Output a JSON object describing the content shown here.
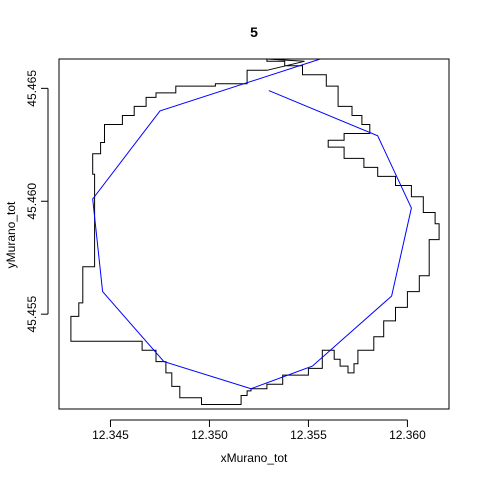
{
  "chart_data": {
    "type": "line",
    "title": "5",
    "xlabel": "xMurano_tot",
    "ylabel": "yMurano_tot",
    "xlim": [
      12.3424,
      12.3621
    ],
    "ylim": [
      45.4508,
      45.4663
    ],
    "x_ticks": [
      12.345,
      12.35,
      12.355,
      12.36
    ],
    "x_tick_labels": [
      "12.345",
      "12.350",
      "12.355",
      "12.360"
    ],
    "y_ticks": [
      45.455,
      45.46,
      45.465
    ],
    "y_tick_labels": [
      "45.455",
      "45.460",
      "45.465"
    ],
    "grid": false,
    "colors": {
      "outline": "#000000",
      "path": "#0000ff",
      "axes": "#000000"
    },
    "series": [
      {
        "style": "step",
        "color": "#000000",
        "points": [
          [
            12.3529,
            45.4663
          ],
          [
            12.3548,
            45.4662
          ],
          [
            12.3548,
            45.4662
          ],
          [
            12.3529,
            45.4658
          ],
          [
            12.3519,
            45.4658
          ],
          [
            12.3519,
            45.4652
          ],
          [
            12.3503,
            45.4652
          ],
          [
            12.3503,
            45.4651
          ],
          [
            12.3483,
            45.4651
          ],
          [
            12.3483,
            45.4648
          ],
          [
            12.3473,
            45.4648
          ],
          [
            12.3473,
            45.4646
          ],
          [
            12.3468,
            45.4646
          ],
          [
            12.3468,
            45.4642
          ],
          [
            12.3462,
            45.4642
          ],
          [
            12.3462,
            45.4638
          ],
          [
            12.3456,
            45.4638
          ],
          [
            12.3456,
            45.4634
          ],
          [
            12.3447,
            45.4634
          ],
          [
            12.3447,
            45.4626
          ],
          [
            12.3445,
            45.4626
          ],
          [
            12.3445,
            45.4621
          ],
          [
            12.3441,
            45.4621
          ],
          [
            12.3441,
            45.4612
          ],
          [
            12.3442,
            45.4612
          ],
          [
            12.3442,
            45.4571
          ],
          [
            12.3436,
            45.4571
          ],
          [
            12.3436,
            45.4555
          ],
          [
            12.3434,
            45.4555
          ],
          [
            12.3434,
            45.4549
          ],
          [
            12.343,
            45.4549
          ],
          [
            12.343,
            45.4538
          ],
          [
            12.3466,
            45.4538
          ],
          [
            12.3466,
            45.4534
          ],
          [
            12.3473,
            45.4534
          ],
          [
            12.3473,
            45.4529
          ],
          [
            12.3478,
            45.4529
          ],
          [
            12.3478,
            45.4524
          ],
          [
            12.3481,
            45.4524
          ],
          [
            12.3481,
            45.4518
          ],
          [
            12.3485,
            45.4518
          ],
          [
            12.3485,
            45.4513
          ],
          [
            12.3496,
            45.4513
          ],
          [
            12.3496,
            45.451
          ],
          [
            12.3516,
            45.451
          ],
          [
            12.3516,
            45.4514
          ],
          [
            12.3519,
            45.4514
          ],
          [
            12.3519,
            45.4516
          ],
          [
            12.3521,
            45.4516
          ],
          [
            12.3521,
            45.4517
          ],
          [
            12.3529,
            45.4517
          ],
          [
            12.3529,
            45.4519
          ],
          [
            12.3537,
            45.4519
          ],
          [
            12.3537,
            45.4523
          ],
          [
            12.355,
            45.4523
          ],
          [
            12.355,
            45.4526
          ],
          [
            12.3557,
            45.4526
          ],
          [
            12.3557,
            45.4534
          ],
          [
            12.3563,
            45.4534
          ],
          [
            12.3563,
            45.453
          ],
          [
            12.3566,
            45.453
          ],
          [
            12.3566,
            45.4527
          ],
          [
            12.357,
            45.4527
          ],
          [
            12.357,
            45.4524
          ],
          [
            12.3573,
            45.4524
          ],
          [
            12.3573,
            45.4528
          ],
          [
            12.3575,
            45.4528
          ],
          [
            12.3575,
            45.4534
          ],
          [
            12.3583,
            45.4534
          ],
          [
            12.3583,
            45.454
          ],
          [
            12.3588,
            45.454
          ],
          [
            12.3588,
            45.4547
          ],
          [
            12.3594,
            45.4547
          ],
          [
            12.3594,
            45.4553
          ],
          [
            12.36,
            45.4553
          ],
          [
            12.36,
            45.456
          ],
          [
            12.3606,
            45.456
          ],
          [
            12.3606,
            45.4567
          ],
          [
            12.3611,
            45.4567
          ],
          [
            12.3611,
            45.4583
          ],
          [
            12.3616,
            45.4583
          ],
          [
            12.3616,
            45.459
          ],
          [
            12.3614,
            45.459
          ],
          [
            12.3614,
            45.4595
          ],
          [
            12.3608,
            45.4595
          ],
          [
            12.3608,
            45.4602
          ],
          [
            12.3602,
            45.4602
          ],
          [
            12.3602,
            45.4607
          ],
          [
            12.3594,
            45.4607
          ],
          [
            12.3594,
            45.4611
          ],
          [
            12.3585,
            45.4611
          ],
          [
            12.3585,
            45.4615
          ],
          [
            12.3578,
            45.4615
          ],
          [
            12.3578,
            45.4619
          ],
          [
            12.3568,
            45.4619
          ],
          [
            12.3568,
            45.4624
          ],
          [
            12.356,
            45.4624
          ],
          [
            12.356,
            45.4627
          ],
          [
            12.3568,
            45.4627
          ],
          [
            12.3568,
            45.463
          ],
          [
            12.3581,
            45.463
          ],
          [
            12.3581,
            45.4634
          ],
          [
            12.3577,
            45.4634
          ],
          [
            12.3577,
            45.4638
          ],
          [
            12.3572,
            45.4638
          ],
          [
            12.3572,
            45.4642
          ],
          [
            12.3565,
            45.4642
          ],
          [
            12.3565,
            45.4651
          ],
          [
            12.3559,
            45.4651
          ],
          [
            12.3559,
            45.4656
          ],
          [
            12.3547,
            45.4656
          ],
          [
            12.3547,
            45.466
          ],
          [
            12.3538,
            45.466
          ],
          [
            12.3538,
            45.4662
          ],
          [
            12.3529,
            45.4662
          ],
          [
            12.3529,
            45.4663
          ]
        ]
      },
      {
        "style": "line",
        "color": "#0000ff",
        "points": [
          [
            12.353,
            45.4649
          ],
          [
            12.3585,
            45.4629
          ],
          [
            12.3602,
            45.4597
          ],
          [
            12.3592,
            45.4558
          ],
          [
            12.3552,
            45.4527
          ],
          [
            12.3521,
            45.4517
          ],
          [
            12.3477,
            45.4529
          ],
          [
            12.3446,
            45.456
          ],
          [
            12.3441,
            45.4601
          ],
          [
            12.3475,
            45.464
          ],
          [
            12.3556,
            45.4663
          ]
        ]
      }
    ]
  }
}
